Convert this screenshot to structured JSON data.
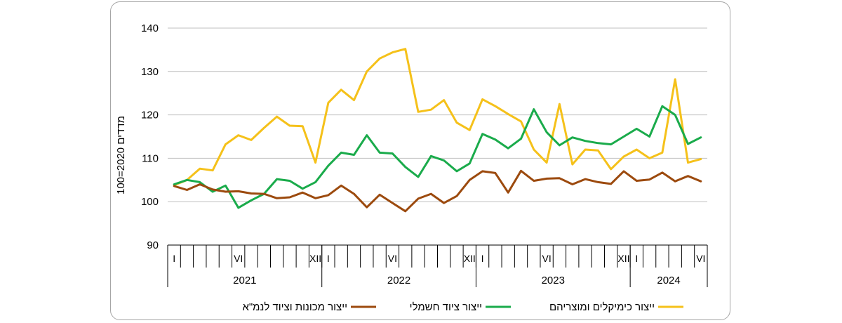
{
  "chart_data": {
    "type": "line",
    "ylabel": "מדדים 2020=100",
    "ylim": [
      90,
      140
    ],
    "yticks": [
      90,
      100,
      110,
      120,
      130,
      140
    ],
    "grid": true,
    "legend_position": "bottom",
    "years": [
      {
        "label": "2021",
        "months": 12
      },
      {
        "label": "2022",
        "months": 12
      },
      {
        "label": "2023",
        "months": 12
      },
      {
        "label": "2024",
        "months": 6
      }
    ],
    "month_labels": [
      {
        "index": 0,
        "label": "I"
      },
      {
        "index": 5,
        "label": "VI"
      },
      {
        "index": 11,
        "label": "XII"
      },
      {
        "index": 12,
        "label": "I"
      },
      {
        "index": 17,
        "label": "VI"
      },
      {
        "index": 23,
        "label": "XII"
      },
      {
        "index": 24,
        "label": "I"
      },
      {
        "index": 29,
        "label": "VI"
      },
      {
        "index": 35,
        "label": "XII"
      },
      {
        "index": 36,
        "label": "I"
      },
      {
        "index": 41,
        "label": "VI"
      }
    ],
    "series": [
      {
        "name": "ייצור כימיקלים ומוצריהם",
        "color": "#f5c11a",
        "values": [
          103.8,
          105.0,
          107.6,
          107.2,
          113.2,
          115.3,
          114.2,
          117.0,
          119.6,
          117.5,
          117.4,
          109.0,
          122.8,
          125.8,
          123.4,
          130.0,
          133.0,
          134.4,
          135.2,
          120.7,
          121.2,
          123.4,
          118.2,
          116.5,
          123.6,
          122.0,
          120.2,
          118.5,
          112.0,
          109.0,
          122.5,
          108.6,
          112.0,
          111.8,
          107.5,
          110.4,
          112.0,
          110.0,
          111.3,
          128.2,
          109.0,
          109.8
        ]
      },
      {
        "name": "ייצור ציוד חשמלי",
        "color": "#1aab4b",
        "values": [
          104.0,
          105.0,
          104.5,
          102.3,
          103.7,
          98.6,
          100.3,
          101.8,
          105.2,
          104.8,
          103.0,
          104.5,
          108.3,
          111.3,
          110.8,
          115.3,
          111.3,
          111.1,
          108.0,
          105.7,
          110.5,
          109.5,
          107.0,
          108.8,
          115.6,
          114.3,
          112.3,
          114.5,
          121.3,
          116.0,
          113.0,
          114.8,
          114.0,
          113.5,
          113.2,
          115.0,
          116.8,
          115.0,
          122.0,
          120.0,
          113.3,
          114.8
        ]
      },
      {
        "name": "ייצור מכונות וציוד לנמ\"א",
        "color": "#9c4a0e",
        "values": [
          103.6,
          102.7,
          104.0,
          102.8,
          102.3,
          102.4,
          101.9,
          101.8,
          100.8,
          101.0,
          102.1,
          100.8,
          101.5,
          103.7,
          101.8,
          98.7,
          101.6,
          99.7,
          97.8,
          100.7,
          101.8,
          99.7,
          101.3,
          105.0,
          107.0,
          106.6,
          102.1,
          107.1,
          104.8,
          105.3,
          105.4,
          104.0,
          105.2,
          104.5,
          104.1,
          107.0,
          104.8,
          105.1,
          106.7,
          104.7,
          105.9,
          104.7
        ]
      }
    ]
  }
}
